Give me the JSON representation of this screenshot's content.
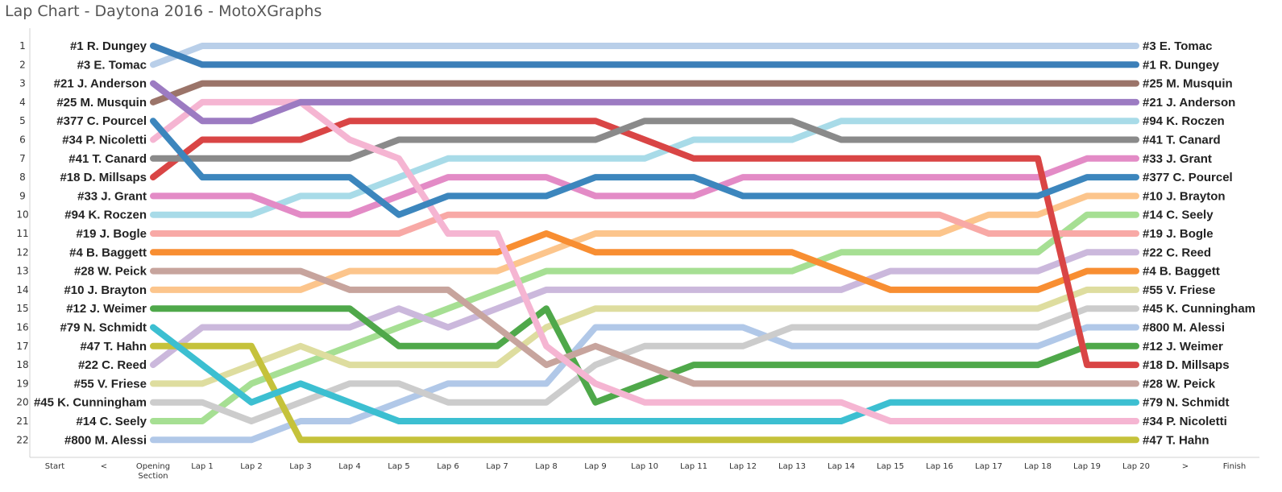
{
  "title": "Lap Chart - Daytona 2016 - MotoXGraphs",
  "chart_data": {
    "type": "line",
    "title": "Lap Chart - Daytona 2016 - MotoXGraphs",
    "xlabel": "",
    "ylabel": "",
    "x_categories": [
      "Start",
      "<",
      "Opening Section",
      "Lap 1",
      "Lap 2",
      "Lap 3",
      "Lap 4",
      "Lap 5",
      "Lap 6",
      "Lap 7",
      "Lap 8",
      "Lap 9",
      "Lap 10",
      "Lap 11",
      "Lap 12",
      "Lap 13",
      "Lap 14",
      "Lap 15",
      "Lap 16",
      "Lap 17",
      "Lap 18",
      "Lap 19",
      "Lap 20",
      ">",
      "Finish"
    ],
    "data_categories": [
      "Opening Section",
      "Lap 1",
      "Lap 2",
      "Lap 3",
      "Lap 4",
      "Lap 5",
      "Lap 6",
      "Lap 7",
      "Lap 8",
      "Lap 9",
      "Lap 10",
      "Lap 11",
      "Lap 12",
      "Lap 13",
      "Lap 14",
      "Lap 15",
      "Lap 16",
      "Lap 17",
      "Lap 18",
      "Lap 19",
      "Lap 20"
    ],
    "y_axis": {
      "inverted": true,
      "ticks": [
        1,
        2,
        3,
        4,
        5,
        6,
        7,
        8,
        9,
        10,
        11,
        12,
        13,
        14,
        15,
        16,
        17,
        18,
        19,
        20,
        21,
        22
      ]
    },
    "grid": false,
    "series": [
      {
        "name": "#1 R. Dungey",
        "start_label": "#1 R. Dungey",
        "finish_label": "#1 R. Dungey",
        "color": "#3c7fb8",
        "values": [
          1,
          2,
          2,
          2,
          2,
          2,
          2,
          2,
          2,
          2,
          2,
          2,
          2,
          2,
          2,
          2,
          2,
          2,
          2,
          2,
          2
        ]
      },
      {
        "name": "#3 E. Tomac",
        "start_label": "#3 E. Tomac",
        "finish_label": "#3 E. Tomac",
        "color": "#b9cfe9",
        "values": [
          2,
          1,
          1,
          1,
          1,
          1,
          1,
          1,
          1,
          1,
          1,
          1,
          1,
          1,
          1,
          1,
          1,
          1,
          1,
          1,
          1
        ]
      },
      {
        "name": "#21 J. Anderson",
        "start_label": "#21 J. Anderson",
        "finish_label": "#21 J. Anderson",
        "color": "#9c7bc2",
        "values": [
          3,
          5,
          5,
          4,
          4,
          4,
          4,
          4,
          4,
          4,
          4,
          4,
          4,
          4,
          4,
          4,
          4,
          4,
          4,
          4,
          4
        ]
      },
      {
        "name": "#25 M. Musquin",
        "start_label": "#25 M. Musquin",
        "finish_label": "#25 M. Musquin",
        "color": "#9b7469",
        "values": [
          4,
          3,
          3,
          3,
          3,
          3,
          3,
          3,
          3,
          3,
          3,
          3,
          3,
          3,
          3,
          3,
          3,
          3,
          3,
          3,
          3
        ]
      },
      {
        "name": "#377 C. Pourcel",
        "start_label": "#377 C. Pourcel",
        "finish_label": "#377 C. Pourcel",
        "color": "#3c86bd",
        "values": [
          5,
          8,
          8,
          8,
          8,
          10,
          9,
          9,
          9,
          8,
          8,
          8,
          9,
          9,
          9,
          9,
          9,
          9,
          9,
          8,
          8
        ]
      },
      {
        "name": "#34 P. Nicoletti",
        "start_label": "#34 P. Nicoletti",
        "finish_label": "#34 P. Nicoletti",
        "color": "#f5b5d2",
        "values": [
          6,
          4,
          4,
          4,
          6,
          7,
          11,
          11,
          17,
          19,
          20,
          20,
          20,
          20,
          20,
          21,
          21,
          21,
          21,
          21,
          21
        ]
      },
      {
        "name": "#41 T. Canard",
        "start_label": "#41 T. Canard",
        "finish_label": "#41 T. Canard",
        "color": "#8a8a8a",
        "values": [
          7,
          7,
          7,
          7,
          7,
          6,
          6,
          6,
          6,
          6,
          5,
          5,
          5,
          5,
          6,
          6,
          6,
          6,
          6,
          6,
          6
        ]
      },
      {
        "name": "#18 D. Millsaps",
        "start_label": "#18 D. Millsaps",
        "finish_label": "#18 D. Millsaps",
        "color": "#d94545",
        "values": [
          8,
          6,
          6,
          6,
          5,
          5,
          5,
          5,
          5,
          5,
          6,
          7,
          7,
          7,
          7,
          7,
          7,
          7,
          7,
          18,
          18
        ]
      },
      {
        "name": "#33 J. Grant",
        "start_label": "#33 J. Grant",
        "finish_label": "#33 J. Grant",
        "color": "#e38bc6",
        "values": [
          9,
          9,
          9,
          10,
          10,
          9,
          8,
          8,
          8,
          9,
          9,
          9,
          8,
          8,
          8,
          8,
          8,
          8,
          8,
          7,
          7
        ]
      },
      {
        "name": "#94 K. Roczen",
        "start_label": "#94 K. Roczen",
        "finish_label": "#94 K. Roczen",
        "color": "#a8dbe8",
        "values": [
          10,
          10,
          10,
          9,
          9,
          8,
          7,
          7,
          7,
          7,
          7,
          6,
          6,
          6,
          5,
          5,
          5,
          5,
          5,
          5,
          5
        ]
      },
      {
        "name": "#19 J. Bogle",
        "start_label": "#19 J. Bogle",
        "finish_label": "#19 J. Bogle",
        "color": "#f8a9a6",
        "values": [
          11,
          11,
          11,
          11,
          11,
          11,
          10,
          10,
          10,
          10,
          10,
          10,
          10,
          10,
          10,
          10,
          10,
          11,
          11,
          11,
          11
        ]
      },
      {
        "name": "#4 B. Baggett",
        "start_label": "#4 B. Baggett",
        "finish_label": "#4 B. Baggett",
        "color": "#f88e32",
        "values": [
          12,
          12,
          12,
          12,
          12,
          12,
          12,
          12,
          11,
          12,
          12,
          12,
          12,
          12,
          13,
          14,
          14,
          14,
          14,
          13,
          13
        ]
      },
      {
        "name": "#28 W. Peick",
        "start_label": "#28 W. Peick",
        "finish_label": "#28 W. Peick",
        "color": "#c7a49d",
        "values": [
          13,
          13,
          13,
          13,
          14,
          14,
          14,
          16,
          18,
          17,
          18,
          19,
          19,
          19,
          19,
          19,
          19,
          19,
          19,
          19,
          19
        ]
      },
      {
        "name": "#10 J. Brayton",
        "start_label": "#10 J. Brayton",
        "finish_label": "#10 J. Brayton",
        "color": "#fcc58c",
        "values": [
          14,
          14,
          14,
          14,
          13,
          13,
          13,
          13,
          12,
          11,
          11,
          11,
          11,
          11,
          11,
          11,
          11,
          10,
          10,
          9,
          9
        ]
      },
      {
        "name": "#12 J. Weimer",
        "start_label": "#12 J. Weimer",
        "finish_label": "#12 J. Weimer",
        "color": "#4fa84a",
        "values": [
          15,
          15,
          15,
          15,
          15,
          17,
          17,
          17,
          15,
          20,
          19,
          18,
          18,
          18,
          18,
          18,
          18,
          18,
          18,
          17,
          17
        ]
      },
      {
        "name": "#79 N. Schmidt",
        "start_label": "#79 N. Schmidt",
        "finish_label": "#79 N. Schmidt",
        "color": "#3cbfd1",
        "values": [
          16,
          18,
          20,
          19,
          20,
          21,
          21,
          21,
          21,
          21,
          21,
          21,
          21,
          21,
          21,
          20,
          20,
          20,
          20,
          20,
          20
        ]
      },
      {
        "name": "#47 T. Hahn",
        "start_label": "#47 T. Hahn",
        "finish_label": "#47 T. Hahn",
        "color": "#c5c23b",
        "values": [
          17,
          17,
          17,
          22,
          22,
          22,
          22,
          22,
          22,
          22,
          22,
          22,
          22,
          22,
          22,
          22,
          22,
          22,
          22,
          22,
          22
        ]
      },
      {
        "name": "#22 C. Reed",
        "start_label": "#22 C. Reed",
        "finish_label": "#22 C. Reed",
        "color": "#cbb8dc",
        "values": [
          18,
          16,
          16,
          16,
          16,
          15,
          16,
          15,
          14,
          14,
          14,
          14,
          14,
          14,
          14,
          13,
          13,
          13,
          13,
          12,
          12
        ]
      },
      {
        "name": "#55 V. Friese",
        "start_label": "#55 V. Friese",
        "finish_label": "#55 V. Friese",
        "color": "#dedd9f",
        "values": [
          19,
          19,
          18,
          17,
          18,
          18,
          18,
          18,
          16,
          15,
          15,
          15,
          15,
          15,
          15,
          15,
          15,
          15,
          15,
          14,
          14
        ]
      },
      {
        "name": "#45 K. Cunningham",
        "start_label": "#45 K. Cunningham",
        "finish_label": "#45 K. Cunningham",
        "color": "#cccccc",
        "values": [
          20,
          20,
          21,
          20,
          19,
          19,
          20,
          20,
          20,
          18,
          17,
          17,
          17,
          16,
          16,
          16,
          16,
          16,
          16,
          15,
          15
        ]
      },
      {
        "name": "#14 C. Seely",
        "start_label": "#14 C. Seely",
        "finish_label": "#14 C. Seely",
        "color": "#a6df93",
        "values": [
          21,
          21,
          19,
          18,
          17,
          16,
          15,
          14,
          13,
          13,
          13,
          13,
          13,
          13,
          12,
          12,
          12,
          12,
          12,
          10,
          10
        ]
      },
      {
        "name": "#800 M. Alessi",
        "start_label": "#800 M. Alessi",
        "finish_label": "#800 M. Alessi",
        "color": "#b1c8e8",
        "values": [
          22,
          22,
          22,
          21,
          21,
          20,
          19,
          19,
          19,
          16,
          16,
          16,
          16,
          17,
          17,
          17,
          17,
          17,
          17,
          16,
          16
        ]
      }
    ]
  }
}
